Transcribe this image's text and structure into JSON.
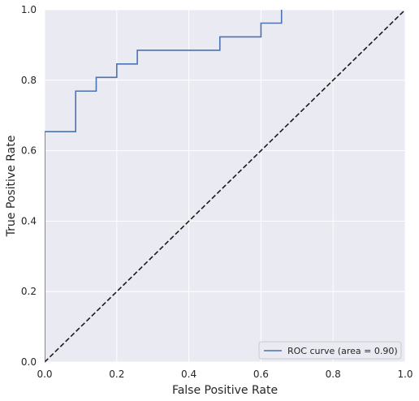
{
  "chart_data": {
    "type": "line",
    "xlabel": "False Positive Rate",
    "ylabel": "True Positive Rate",
    "xlim": [
      0,
      1
    ],
    "ylim": [
      0,
      1
    ],
    "xticks": [
      "0.0",
      "0.2",
      "0.4",
      "0.6",
      "0.8",
      "1.0"
    ],
    "yticks": [
      "0.0",
      "0.2",
      "0.4",
      "0.6",
      "0.8",
      "1.0"
    ],
    "grid": true,
    "legend_position": "lower right",
    "series": [
      {
        "name": "ROC curve (area = 0.90)",
        "color": "#4c72b0",
        "style": "solid",
        "x": [
          0.0,
          0.0,
          0.086,
          0.086,
          0.143,
          0.143,
          0.2,
          0.2,
          0.257,
          0.257,
          0.486,
          0.486,
          0.6,
          0.6,
          0.657,
          0.657
        ],
        "y": [
          0.0,
          0.654,
          0.654,
          0.769,
          0.769,
          0.808,
          0.808,
          0.846,
          0.846,
          0.885,
          0.885,
          0.923,
          0.923,
          0.962,
          0.962,
          1.0
        ]
      },
      {
        "color": "#1a1a1a",
        "style": "dashed",
        "x": [
          0,
          1
        ],
        "y": [
          0,
          1
        ]
      }
    ]
  },
  "colors": {
    "plot_background": "#eaeaf2",
    "grid": "#ffffff",
    "text": "#262626"
  }
}
